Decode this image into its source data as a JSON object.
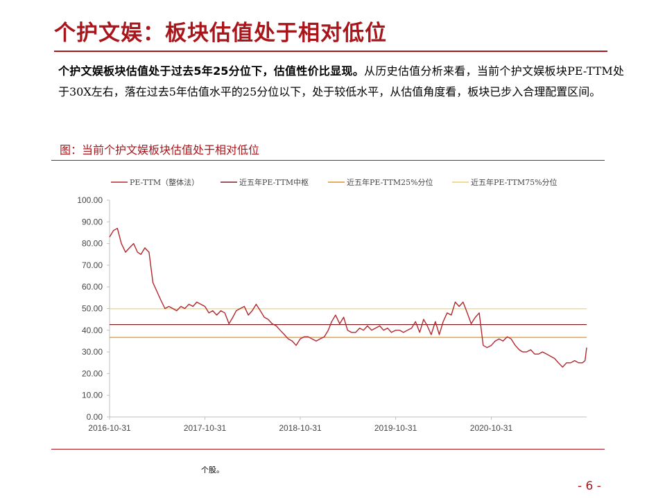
{
  "header": {
    "title": "个护文娱：板块估值处于相对低位"
  },
  "body": {
    "bold_lead": "个护文娱板块估值处于过去5年25分位下，估值性价比显现。",
    "text": "从历史估值分析来看，当前个护文娱板块PE-TTM处于30X左右，落在过去5年估值水平的25分位以下，处于较低水平，从估值角度看，板块已步入合理配置区间。"
  },
  "figure": {
    "caption": "图：当前个护文娱板块估值处于相对低位",
    "source": "个股。"
  },
  "page": {
    "number": "- 6 -"
  },
  "chart_data": {
    "type": "line",
    "legend_position": "top",
    "grid": false,
    "x_ticks": [
      "2016-10-31",
      "2017-10-31",
      "2018-10-31",
      "2019-10-31",
      "2020-10-31"
    ],
    "x_range": [
      "2016-10-31",
      "2021-10-31"
    ],
    "y_ticks": [
      "0.00",
      "10.00",
      "20.00",
      "30.00",
      "40.00",
      "50.00",
      "60.00",
      "70.00",
      "80.00",
      "90.00",
      "100.00"
    ],
    "ylim": [
      0,
      100
    ],
    "colors": {
      "pe": "#b2262b",
      "median": "#7b1e22",
      "p25": "#e0902a",
      "p75": "#ead06f"
    },
    "series": [
      {
        "name": "PE-TTM（整体法）",
        "points": [
          [
            "2016-10-31",
            83
          ],
          [
            "2016-11-15",
            86
          ],
          [
            "2016-11-30",
            87
          ],
          [
            "2016-12-15",
            80
          ],
          [
            "2016-12-31",
            76
          ],
          [
            "2017-01-15",
            78
          ],
          [
            "2017-01-31",
            80
          ],
          [
            "2017-02-15",
            76
          ],
          [
            "2017-02-28",
            75
          ],
          [
            "2017-03-15",
            78
          ],
          [
            "2017-03-31",
            76
          ],
          [
            "2017-04-15",
            62
          ],
          [
            "2017-04-30",
            58
          ],
          [
            "2017-05-15",
            54
          ],
          [
            "2017-05-31",
            50
          ],
          [
            "2017-06-15",
            51
          ],
          [
            "2017-06-30",
            50
          ],
          [
            "2017-07-15",
            49
          ],
          [
            "2017-07-31",
            51
          ],
          [
            "2017-08-15",
            50
          ],
          [
            "2017-08-31",
            52
          ],
          [
            "2017-09-15",
            51
          ],
          [
            "2017-09-30",
            53
          ],
          [
            "2017-10-15",
            52
          ],
          [
            "2017-10-31",
            51
          ],
          [
            "2017-11-15",
            48
          ],
          [
            "2017-11-30",
            49
          ],
          [
            "2017-12-15",
            47
          ],
          [
            "2017-12-31",
            49
          ],
          [
            "2018-01-15",
            48
          ],
          [
            "2018-01-31",
            43
          ],
          [
            "2018-02-15",
            46
          ],
          [
            "2018-02-28",
            49
          ],
          [
            "2018-03-15",
            50
          ],
          [
            "2018-03-31",
            51
          ],
          [
            "2018-04-15",
            47
          ],
          [
            "2018-04-30",
            49
          ],
          [
            "2018-05-15",
            52
          ],
          [
            "2018-05-31",
            49
          ],
          [
            "2018-06-15",
            46
          ],
          [
            "2018-06-30",
            45
          ],
          [
            "2018-07-15",
            43
          ],
          [
            "2018-07-31",
            42
          ],
          [
            "2018-08-15",
            40
          ],
          [
            "2018-08-31",
            38
          ],
          [
            "2018-09-15",
            36
          ],
          [
            "2018-09-30",
            35
          ],
          [
            "2018-10-15",
            33
          ],
          [
            "2018-10-31",
            36
          ],
          [
            "2018-11-15",
            37
          ],
          [
            "2018-11-30",
            37
          ],
          [
            "2018-12-15",
            36
          ],
          [
            "2018-12-31",
            35
          ],
          [
            "2019-01-15",
            36
          ],
          [
            "2019-01-31",
            37
          ],
          [
            "2019-02-15",
            40
          ],
          [
            "2019-02-28",
            44
          ],
          [
            "2019-03-15",
            47
          ],
          [
            "2019-03-31",
            43
          ],
          [
            "2019-04-15",
            46
          ],
          [
            "2019-04-30",
            40
          ],
          [
            "2019-05-15",
            39
          ],
          [
            "2019-05-31",
            39
          ],
          [
            "2019-06-15",
            41
          ],
          [
            "2019-06-30",
            40
          ],
          [
            "2019-07-15",
            42
          ],
          [
            "2019-07-31",
            40
          ],
          [
            "2019-08-15",
            41
          ],
          [
            "2019-08-31",
            42
          ],
          [
            "2019-09-15",
            40
          ],
          [
            "2019-09-30",
            41
          ],
          [
            "2019-10-15",
            39
          ],
          [
            "2019-10-31",
            40
          ],
          [
            "2019-11-15",
            40
          ],
          [
            "2019-11-30",
            39
          ],
          [
            "2019-12-15",
            40
          ],
          [
            "2019-12-31",
            41
          ],
          [
            "2020-01-15",
            44
          ],
          [
            "2020-01-31",
            39
          ],
          [
            "2020-02-15",
            45
          ],
          [
            "2020-02-29",
            42
          ],
          [
            "2020-03-15",
            38
          ],
          [
            "2020-03-31",
            44
          ],
          [
            "2020-04-15",
            38
          ],
          [
            "2020-04-30",
            44
          ],
          [
            "2020-05-15",
            48
          ],
          [
            "2020-05-31",
            47
          ],
          [
            "2020-06-15",
            53
          ],
          [
            "2020-06-30",
            51
          ],
          [
            "2020-07-15",
            53
          ],
          [
            "2020-07-31",
            48
          ],
          [
            "2020-08-15",
            43
          ],
          [
            "2020-08-31",
            46
          ],
          [
            "2020-09-15",
            48
          ],
          [
            "2020-09-30",
            33
          ],
          [
            "2020-10-15",
            32
          ],
          [
            "2020-10-31",
            33
          ],
          [
            "2020-11-15",
            35
          ],
          [
            "2020-11-30",
            36
          ],
          [
            "2020-12-15",
            35
          ],
          [
            "2020-12-31",
            37
          ],
          [
            "2021-01-15",
            36
          ],
          [
            "2021-01-31",
            33
          ],
          [
            "2021-02-15",
            31
          ],
          [
            "2021-02-28",
            30
          ],
          [
            "2021-03-15",
            30
          ],
          [
            "2021-03-31",
            31
          ],
          [
            "2021-04-15",
            29
          ],
          [
            "2021-04-30",
            29
          ],
          [
            "2021-05-15",
            30
          ],
          [
            "2021-05-31",
            29
          ],
          [
            "2021-06-15",
            28
          ],
          [
            "2021-06-30",
            27
          ],
          [
            "2021-07-15",
            25
          ],
          [
            "2021-07-31",
            23
          ],
          [
            "2021-08-15",
            25
          ],
          [
            "2021-08-31",
            25
          ],
          [
            "2021-09-15",
            26
          ],
          [
            "2021-09-30",
            25
          ],
          [
            "2021-10-15",
            25
          ],
          [
            "2021-10-25",
            26
          ],
          [
            "2021-10-31",
            32
          ]
        ]
      },
      {
        "name": "近五年PE-TTM中枢",
        "value": 42.6
      },
      {
        "name": "近五年PE-TTM25%分位",
        "value": 36.7
      },
      {
        "name": "近五年PE-TTM75%分位",
        "value": 49.9
      }
    ]
  }
}
